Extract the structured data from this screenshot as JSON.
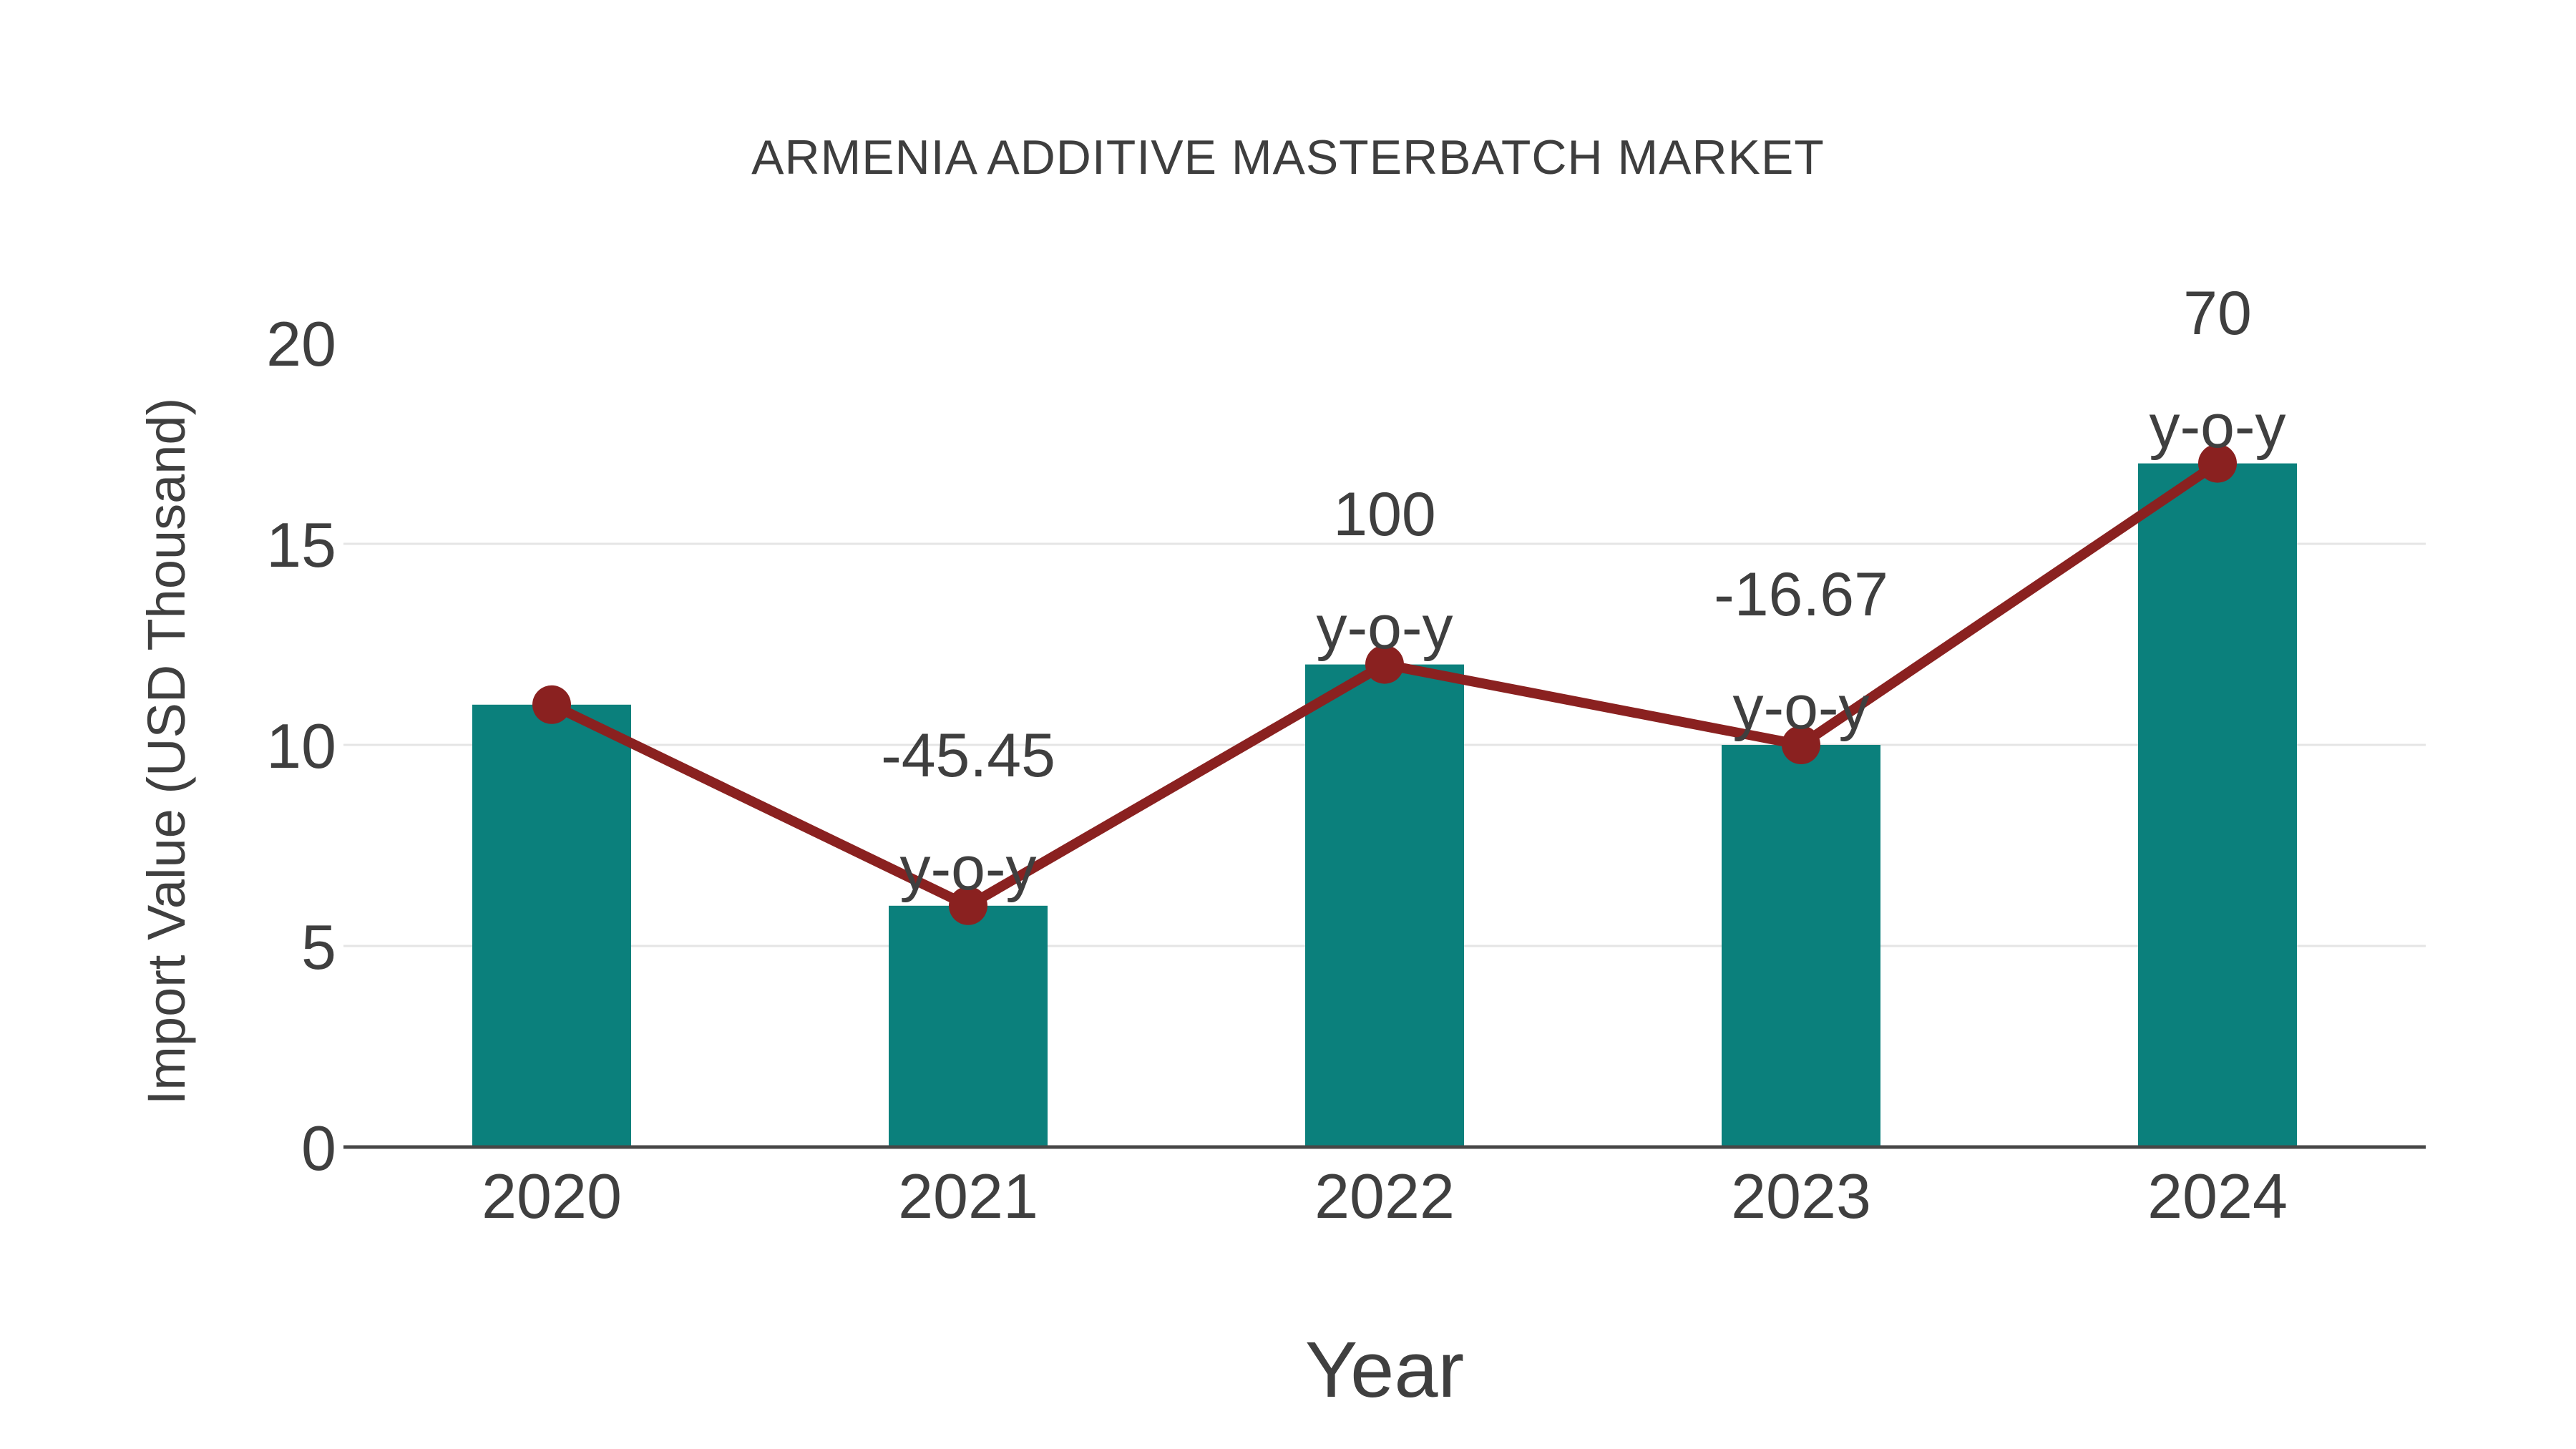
{
  "page": {
    "background": "#FFFFFF"
  },
  "chart_data": {
    "type": "bar",
    "subtype": "bar-with-line-overlay",
    "title": "ARMENIA ADDITIVE MASTERBATCH MARKET",
    "xlabel": "Year",
    "ylabel": "Import Value (USD Thousand)",
    "categories": [
      "2020",
      "2021",
      "2022",
      "2023",
      "2024"
    ],
    "series": [
      {
        "name": "Import Value (USD Thousand)",
        "type": "bar",
        "values": [
          11,
          6,
          12,
          10,
          17
        ]
      },
      {
        "name": "Import Value trend line",
        "type": "line",
        "values": [
          11,
          6,
          12,
          10,
          17
        ]
      }
    ],
    "yoy_percent": [
      null,
      -45.45,
      100,
      -16.67,
      70
    ],
    "annotations": [
      {
        "category": "2021",
        "text_lines": [
          "-45.45",
          "y-o-y"
        ]
      },
      {
        "category": "2022",
        "text_lines": [
          "100",
          "y-o-y"
        ]
      },
      {
        "category": "2023",
        "text_lines": [
          "-16.67",
          "y-o-y"
        ]
      },
      {
        "category": "2024",
        "text_lines": [
          "70",
          "y-o-y"
        ]
      }
    ],
    "y_axis": {
      "ticks": [
        0,
        5,
        10,
        15,
        20
      ],
      "range": [
        0,
        20
      ],
      "gridlines_at": [
        5,
        10,
        15
      ],
      "grid": true
    },
    "x_axis": {
      "ticks": [
        "2020",
        "2021",
        "2022",
        "2023",
        "2024"
      ]
    },
    "legend": "none",
    "colors": {
      "bar": "#0B807C",
      "line": "#8A2120",
      "marker": "#8A2120",
      "grid": "#E5E5E5",
      "axis": "#474747",
      "tick_text": "#3F3F3F",
      "title_text": "#3E3E3E",
      "background": "#FFFFFF"
    }
  }
}
